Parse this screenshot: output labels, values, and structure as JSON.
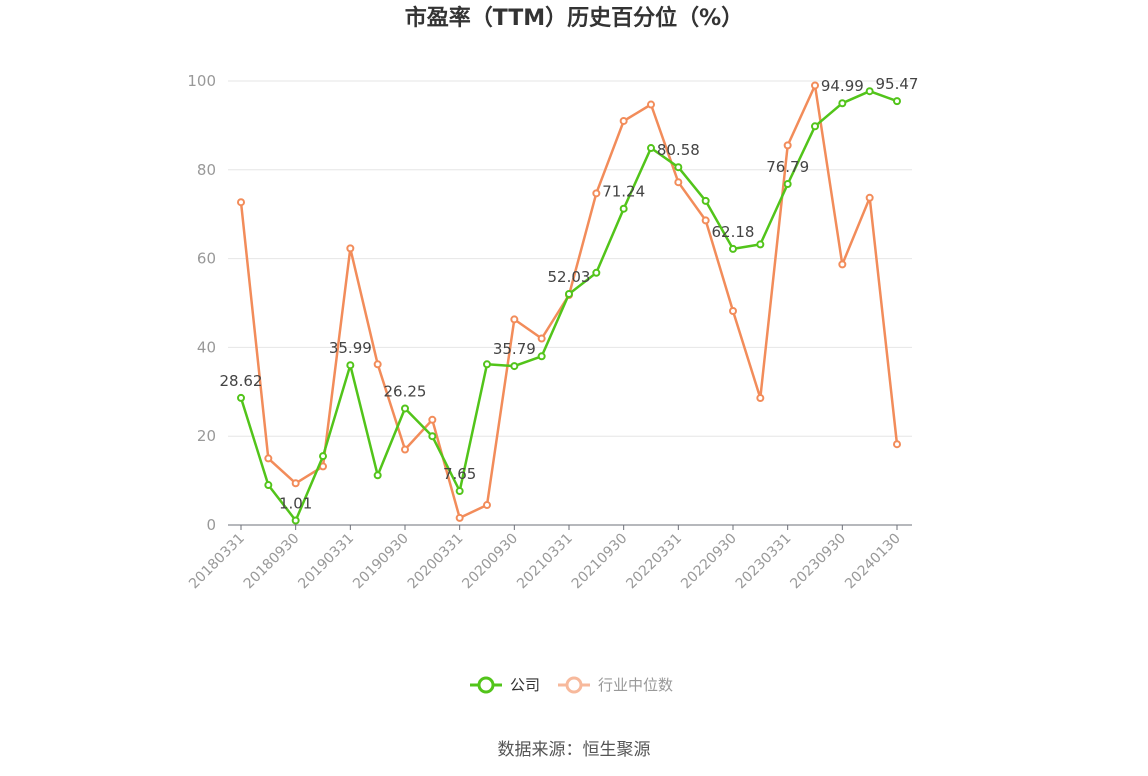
{
  "chart_data": {
    "type": "line",
    "title": "市盈率（TTM）历史百分位（%）",
    "source": "数据来源：恒生聚源",
    "ylim": [
      0,
      100
    ],
    "yticks": [
      0,
      20,
      40,
      60,
      80,
      100
    ],
    "grid": true,
    "legend_position": "bottom-center",
    "x": [
      "20180331",
      "20180630",
      "20180930",
      "20181231",
      "20190331",
      "20190630",
      "20190930",
      "20191231",
      "20200331",
      "20200630",
      "20200930",
      "20201231",
      "20210331",
      "20210630",
      "20210930",
      "20211231",
      "20220331",
      "20220630",
      "20220930",
      "20221231",
      "20230331",
      "20230630",
      "20230930",
      "20231231",
      "20240130"
    ],
    "xtick_labels": [
      "20180331",
      "20180930",
      "20190331",
      "20190930",
      "20200331",
      "20200930",
      "20210331",
      "20210930",
      "20220331",
      "20220930",
      "20230331",
      "20230930",
      "20240130"
    ],
    "xtick_indices": [
      0,
      2,
      4,
      6,
      8,
      10,
      12,
      14,
      16,
      18,
      20,
      22,
      24
    ],
    "series": [
      {
        "name": "公司",
        "color": "#52c41a",
        "values": [
          28.62,
          9.0,
          1.01,
          15.5,
          35.99,
          11.2,
          26.25,
          20.0,
          7.65,
          36.2,
          35.79,
          38.0,
          52.03,
          56.8,
          71.24,
          84.9,
          80.58,
          73.0,
          62.18,
          63.2,
          76.79,
          89.8,
          94.99,
          97.7,
          95.47
        ],
        "labeled_points": [
          {
            "index": 0,
            "text": "28.62"
          },
          {
            "index": 2,
            "text": "1.01"
          },
          {
            "index": 4,
            "text": "35.99"
          },
          {
            "index": 6,
            "text": "26.25"
          },
          {
            "index": 8,
            "text": "7.65"
          },
          {
            "index": 10,
            "text": "35.79"
          },
          {
            "index": 12,
            "text": "52.03"
          },
          {
            "index": 14,
            "text": "71.24"
          },
          {
            "index": 16,
            "text": "80.58"
          },
          {
            "index": 18,
            "text": "62.18"
          },
          {
            "index": 20,
            "text": "76.79"
          },
          {
            "index": 22,
            "text": "94.99"
          },
          {
            "index": 24,
            "text": "95.47"
          }
        ]
      },
      {
        "name": "行业中位数",
        "color": "#f28c5a",
        "legend_color": "#f7b99c",
        "values": [
          72.7,
          15.0,
          9.4,
          13.2,
          62.3,
          36.2,
          17.0,
          23.7,
          1.6,
          4.5,
          46.3,
          42.0,
          51.8,
          74.7,
          91.0,
          94.7,
          77.2,
          68.6,
          48.2,
          28.6,
          85.5,
          99.0,
          58.7,
          73.7,
          18.2
        ]
      }
    ]
  }
}
